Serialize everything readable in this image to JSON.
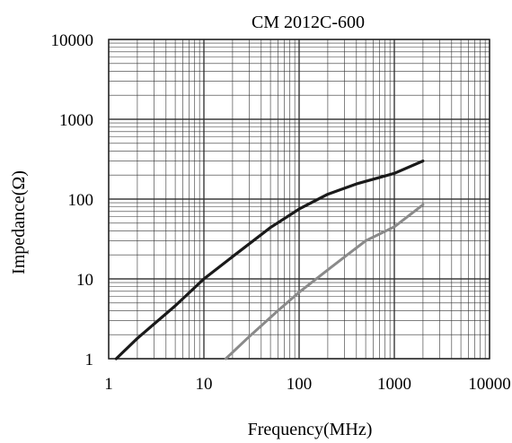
{
  "chart_data": {
    "type": "line",
    "title": "CM 2012C-600",
    "xlabel": "Frequency(MHz)",
    "ylabel": "Impedance(Ω)",
    "x_scale": "log",
    "y_scale": "log",
    "xlim": [
      1,
      10000
    ],
    "ylim": [
      1,
      10000
    ],
    "x_ticks": [
      "1",
      "10",
      "100",
      "1000",
      "10000"
    ],
    "y_ticks": [
      "1",
      "10",
      "100",
      "1000",
      "10000"
    ],
    "grid": true,
    "legend": "none",
    "colors": {
      "dark": "#1a1a1a",
      "gray": "#8a8a8a",
      "grid": "#333333"
    },
    "series": [
      {
        "color": "#1a1a1a",
        "x": [
          1.2,
          2,
          5,
          10,
          20,
          50,
          100,
          200,
          400,
          1000,
          2000
        ],
        "y": [
          1,
          1.8,
          4.6,
          10,
          19,
          44,
          75,
          115,
          155,
          210,
          300
        ]
      },
      {
        "color": "#8a8a8a",
        "x": [
          17,
          30,
          60,
          100,
          200,
          500,
          1000,
          2000
        ],
        "y": [
          1,
          1.9,
          4,
          6.8,
          13,
          30,
          45,
          85
        ]
      }
    ]
  }
}
